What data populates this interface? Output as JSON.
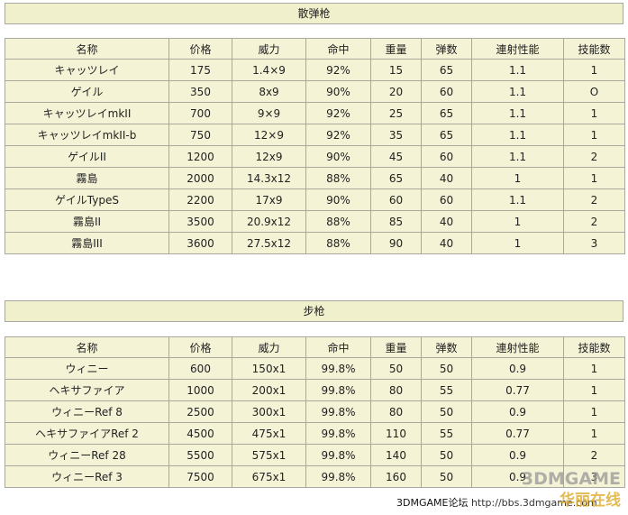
{
  "section1": {
    "title": "散弹枪",
    "headers": [
      "名称",
      "价格",
      "威力",
      "命中",
      "重量",
      "弹数",
      "連射性能",
      "技能数"
    ],
    "rows": [
      [
        "キャッツレイ",
        "175",
        "1.4×9",
        "92%",
        "15",
        "65",
        "1.1",
        "1"
      ],
      [
        "ゲイル",
        "350",
        "8x9",
        "90%",
        "20",
        "60",
        "1.1",
        "O"
      ],
      [
        "キャッツレイmkII",
        "700",
        "9×9",
        "92%",
        "25",
        "65",
        "1.1",
        "1"
      ],
      [
        "キャッツレイmkII-b",
        "750",
        "12×9",
        "92%",
        "35",
        "65",
        "1.1",
        "1"
      ],
      [
        "ゲイルII",
        "1200",
        "12x9",
        "90%",
        "45",
        "60",
        "1.1",
        "2"
      ],
      [
        "霧島",
        "2000",
        "14.3x12",
        "88%",
        "65",
        "40",
        "1",
        "1"
      ],
      [
        "ゲイルTypeS",
        "2200",
        "17x9",
        "90%",
        "60",
        "60",
        "1.1",
        "2"
      ],
      [
        "霧島II",
        "3500",
        "20.9x12",
        "88%",
        "85",
        "40",
        "1",
        "2"
      ],
      [
        "霧島III",
        "3600",
        "27.5x12",
        "88%",
        "90",
        "40",
        "1",
        "3"
      ]
    ]
  },
  "section2": {
    "title": "步枪",
    "headers": [
      "名称",
      "价格",
      "威力",
      "命中",
      "重量",
      "弹数",
      "連射性能",
      "技能数"
    ],
    "rows": [
      [
        "ウィニー",
        "600",
        "150x1",
        "99.8%",
        "50",
        "50",
        "0.9",
        "1"
      ],
      [
        "ヘキサファイア",
        "1000",
        "200x1",
        "99.8%",
        "80",
        "55",
        "0.77",
        "1"
      ],
      [
        "ウィニーRef 8",
        "2500",
        "300x1",
        "99.8%",
        "80",
        "50",
        "0.9",
        "1"
      ],
      [
        "ヘキサファイアRef 2",
        "4500",
        "475x1",
        "99.8%",
        "110",
        "55",
        "0.77",
        "1"
      ],
      [
        "ウィニーRef 28",
        "5500",
        "575x1",
        "99.8%",
        "140",
        "50",
        "0.9",
        "2"
      ],
      [
        "ウィニーRef 3",
        "7500",
        "675x1",
        "99.8%",
        "160",
        "50",
        "0.9",
        "3"
      ]
    ]
  },
  "footer": {
    "site": "3DMGAME论坛",
    "url": "http://bbs.3dmgame.com"
  },
  "watermark": {
    "line1": "3DMGAME",
    "line2": "华丽在线"
  }
}
